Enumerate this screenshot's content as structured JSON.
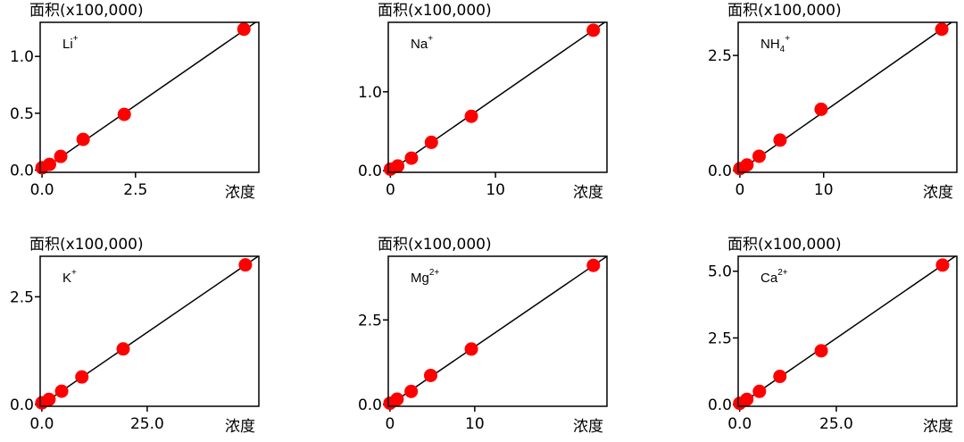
{
  "chart_data": [
    {
      "type": "scatter",
      "y_label": "面积(x100,000)",
      "x_label": "浓度",
      "ion": {
        "base": "Li",
        "sup": "+"
      },
      "xlim": [
        -0.05,
        5.8
      ],
      "ylim": [
        -0.02,
        1.3
      ],
      "xticks": [
        0.0,
        2.5
      ],
      "yticks": [
        0.0,
        0.5,
        1.0
      ],
      "xtick_labels": [
        "0.0",
        "2.5"
      ],
      "ytick_labels": [
        "0.0",
        "0.5",
        "1.0"
      ],
      "color": "#ff0000",
      "x": [
        0.0,
        0.2,
        0.5,
        1.1,
        2.2,
        5.4
      ],
      "values": [
        0.02,
        0.05,
        0.12,
        0.27,
        0.49,
        1.24
      ],
      "fit": {
        "x": [
          0,
          5.8
        ],
        "y": [
          0,
          1.32
        ]
      }
    },
    {
      "type": "scatter",
      "y_label": "面积(x100,000)",
      "x_label": "浓度",
      "ion": {
        "base": "Na",
        "sup": "+"
      },
      "xlim": [
        -0.2,
        20.6
      ],
      "ylim": [
        -0.02,
        1.88
      ],
      "xticks": [
        0,
        10
      ],
      "yticks": [
        0.0,
        1.0
      ],
      "xtick_labels": [
        "0",
        "10"
      ],
      "ytick_labels": [
        "0.0",
        "1.0"
      ],
      "color": "#ff0000",
      "x": [
        0.0,
        0.7,
        2.0,
        3.9,
        7.7,
        19.3
      ],
      "values": [
        0.02,
        0.06,
        0.16,
        0.36,
        0.69,
        1.78
      ],
      "fit": {
        "x": [
          0,
          20.6
        ],
        "y": [
          0,
          1.9
        ]
      }
    },
    {
      "type": "scatter",
      "y_label": "面积(x100,000)",
      "x_label": "浓度",
      "ion": {
        "base": "NH",
        "sub": "4",
        "sup": "+"
      },
      "xlim": [
        -0.2,
        25.9
      ],
      "ylim": [
        -0.04,
        3.22
      ],
      "xticks": [
        0,
        10
      ],
      "yticks": [
        0.0,
        2.5
      ],
      "xtick_labels": [
        "0",
        "10"
      ],
      "ytick_labels": [
        "0.0",
        "2.5"
      ],
      "color": "#ff0000",
      "x": [
        0.0,
        0.85,
        2.3,
        4.8,
        9.7,
        24.1
      ],
      "values": [
        0.04,
        0.12,
        0.31,
        0.66,
        1.33,
        3.07
      ],
      "fit": {
        "x": [
          0,
          25.9
        ],
        "y": [
          0,
          3.3
        ]
      }
    },
    {
      "type": "scatter",
      "y_label": "面积(x100,000)",
      "x_label": "浓度",
      "ion": {
        "base": "K",
        "sup": "+"
      },
      "xlim": [
        -0.4,
        51.5
      ],
      "ylim": [
        -0.04,
        3.44
      ],
      "xticks": [
        0.0,
        25.0
      ],
      "yticks": [
        0.0,
        2.5
      ],
      "xtick_labels": [
        "0.0",
        "25.0"
      ],
      "ytick_labels": [
        "0.0",
        "2.5"
      ],
      "color": "#ff0000",
      "x": [
        0.0,
        1.7,
        4.7,
        9.5,
        19.3,
        48.3
      ],
      "values": [
        0.04,
        0.12,
        0.31,
        0.64,
        1.29,
        3.24
      ],
      "fit": {
        "x": [
          0,
          51.5
        ],
        "y": [
          0,
          3.45
        ]
      }
    },
    {
      "type": "scatter",
      "y_label": "面积(x100,000)",
      "x_label": "浓度",
      "ion": {
        "base": "Mg",
        "sup": "2+"
      },
      "xlim": [
        -0.2,
        25.6
      ],
      "ylim": [
        -0.05,
        4.38
      ],
      "xticks": [
        0,
        10
      ],
      "yticks": [
        0.0,
        2.5
      ],
      "xtick_labels": [
        "0",
        "10"
      ],
      "ytick_labels": [
        "0.0",
        "2.5"
      ],
      "color": "#ff0000",
      "x": [
        0.0,
        0.84,
        2.5,
        4.8,
        9.6,
        24.0
      ],
      "values": [
        0.04,
        0.16,
        0.39,
        0.86,
        1.64,
        4.11
      ],
      "fit": {
        "x": [
          0,
          25.6
        ],
        "y": [
          0,
          4.38
        ]
      }
    },
    {
      "type": "scatter",
      "y_label": "面积(x100,000)",
      "x_label": "浓度",
      "ion": {
        "base": "Ca",
        "sup": "2+"
      },
      "xlim": [
        -0.4,
        56.2
      ],
      "ylim": [
        -0.06,
        5.56
      ],
      "xticks": [
        0.0,
        25.0
      ],
      "yticks": [
        0.0,
        2.5,
        5.0
      ],
      "xtick_labels": [
        "0.0",
        "25.0"
      ],
      "ytick_labels": [
        "0.0",
        "2.5",
        "5.0"
      ],
      "color": "#ff0000",
      "x": [
        0.0,
        1.85,
        5.1,
        10.4,
        21.1,
        52.5
      ],
      "values": [
        0.05,
        0.2,
        0.5,
        1.06,
        2.02,
        5.23
      ],
      "fit": {
        "x": [
          0,
          56.2
        ],
        "y": [
          0,
          5.6
        ]
      }
    }
  ]
}
